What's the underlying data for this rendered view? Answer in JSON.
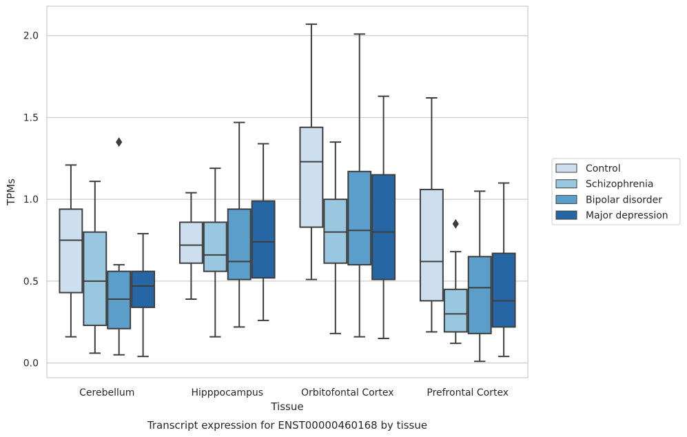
{
  "chart_data": {
    "type": "box",
    "caption": "Transcript expression for ENST00000460168 by tissue",
    "xlabel": "Tissue",
    "ylabel": "TPMs",
    "ylim": [
      -0.09,
      2.18
    ],
    "yticks": [
      0.0,
      0.5,
      1.0,
      1.5,
      2.0
    ],
    "ytick_labels": [
      "0.0",
      "0.5",
      "1.0",
      "1.5",
      "2.0"
    ],
    "grid": "horizontal",
    "legend_position": "right",
    "categories": [
      "Cerebellum",
      "Hipppocampus",
      "Orbitofontal Cortex",
      "Prefrontal Cortex"
    ],
    "series": [
      {
        "name": "Control",
        "color": "#cddeef",
        "boxes": [
          {
            "whislo": 0.16,
            "q1": 0.43,
            "med": 0.75,
            "q3": 0.94,
            "whishi": 1.21,
            "fliers": []
          },
          {
            "whislo": 0.39,
            "q1": 0.61,
            "med": 0.72,
            "q3": 0.86,
            "whishi": 1.04,
            "fliers": []
          },
          {
            "whislo": 0.51,
            "q1": 0.83,
            "med": 1.23,
            "q3": 1.44,
            "whishi": 2.07,
            "fliers": []
          },
          {
            "whislo": 0.19,
            "q1": 0.38,
            "med": 0.62,
            "q3": 1.06,
            "whishi": 1.62,
            "fliers": []
          }
        ]
      },
      {
        "name": "Schizophrenia",
        "color": "#9ac7e0",
        "boxes": [
          {
            "whislo": 0.06,
            "q1": 0.23,
            "med": 0.5,
            "q3": 0.8,
            "whishi": 1.11,
            "fliers": []
          },
          {
            "whislo": 0.16,
            "q1": 0.56,
            "med": 0.66,
            "q3": 0.86,
            "whishi": 1.19,
            "fliers": []
          },
          {
            "whislo": 0.18,
            "q1": 0.61,
            "med": 0.8,
            "q3": 1.0,
            "whishi": 1.35,
            "fliers": []
          },
          {
            "whislo": 0.12,
            "q1": 0.19,
            "med": 0.3,
            "q3": 0.45,
            "whishi": 0.68,
            "fliers": [
              0.85
            ]
          }
        ]
      },
      {
        "name": "Bipolar disorder",
        "color": "#5a9ec9",
        "boxes": [
          {
            "whislo": 0.05,
            "q1": 0.21,
            "med": 0.39,
            "q3": 0.56,
            "whishi": 0.6,
            "fliers": [
              1.35
            ]
          },
          {
            "whislo": 0.22,
            "q1": 0.51,
            "med": 0.62,
            "q3": 0.94,
            "whishi": 1.47,
            "fliers": []
          },
          {
            "whislo": 0.16,
            "q1": 0.6,
            "med": 0.81,
            "q3": 1.17,
            "whishi": 2.01,
            "fliers": []
          },
          {
            "whislo": 0.01,
            "q1": 0.18,
            "med": 0.46,
            "q3": 0.65,
            "whishi": 1.05,
            "fliers": []
          }
        ]
      },
      {
        "name": "Major depression",
        "color": "#2666a5",
        "boxes": [
          {
            "whislo": 0.04,
            "q1": 0.34,
            "med": 0.47,
            "q3": 0.56,
            "whishi": 0.79,
            "fliers": []
          },
          {
            "whislo": 0.26,
            "q1": 0.52,
            "med": 0.74,
            "q3": 0.99,
            "whishi": 1.34,
            "fliers": []
          },
          {
            "whislo": 0.15,
            "q1": 0.51,
            "med": 0.8,
            "q3": 1.15,
            "whishi": 1.63,
            "fliers": []
          },
          {
            "whislo": 0.04,
            "q1": 0.22,
            "med": 0.38,
            "q3": 0.67,
            "whishi": 1.1,
            "fliers": []
          }
        ]
      }
    ]
  }
}
